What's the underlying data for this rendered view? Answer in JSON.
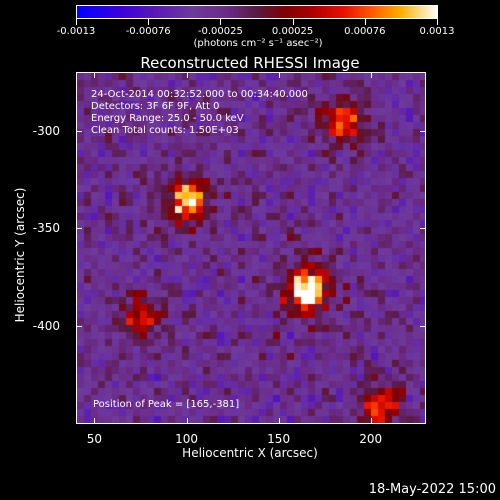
{
  "colorbar": {
    "ticks": [
      "-0.0013",
      "-0.00076",
      "-0.00025",
      "0.00025",
      "0.00076",
      "0.0013"
    ],
    "units": "(photons cm⁻² s⁻¹ asec⁻²)"
  },
  "chart_data": {
    "type": "heatmap",
    "title": "Reconstructed RHESSI Image",
    "xlabel": "Heliocentric X (arcsec)",
    "ylabel": "Heliocentric Y (arcsec)",
    "xlim": [
      40,
      230
    ],
    "ylim": [
      -450,
      -270
    ],
    "xticks": [
      "50",
      "100",
      "150",
      "200"
    ],
    "yticks": [
      "-300",
      "-350",
      "-400"
    ],
    "annotations": [
      "24-Oct-2014 00:32:52.000 to 00:34:40.000",
      "Detectors: 3F 6F 9F, Att 0",
      "Energy Range: 25.0 - 50.0 keV",
      "Clean    Total counts: 1.50E+03"
    ],
    "peak_label": "Position of Peak = [165,-381]",
    "peak": [
      165,
      -381
    ],
    "sources": [
      {
        "x": 165,
        "y": -381,
        "strength": 1.0
      },
      {
        "x": 100,
        "y": -335,
        "strength": 0.8
      },
      {
        "x": 185,
        "y": -295,
        "strength": 0.6
      },
      {
        "x": 205,
        "y": -440,
        "strength": 0.55
      },
      {
        "x": 75,
        "y": -395,
        "strength": 0.45
      }
    ]
  },
  "timestamp": "18-May-2022 15:00"
}
